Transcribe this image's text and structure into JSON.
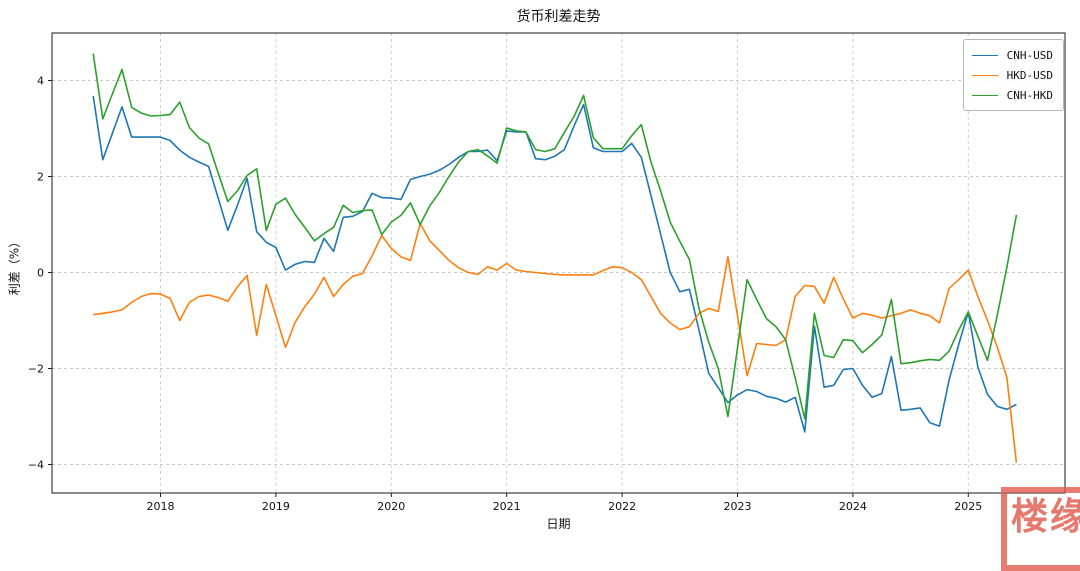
{
  "title": "货币利差走势",
  "xlabel": "日期",
  "ylabel": "利差（%）",
  "watermark_text": "楼缘",
  "colors": {
    "cnh_usd": "#1f77b4",
    "hkd_usd": "#ff7f0e",
    "cnh_hkd": "#2ca02c",
    "grid": "#c9c9c9",
    "spine": "#1a1a1a",
    "stamp": "#e0584a"
  },
  "legend": {
    "position": "upper right",
    "items": [
      {
        "label": "CNH-USD",
        "color": "#1f77b4"
      },
      {
        "label": "HKD-USD",
        "color": "#ff7f0e"
      },
      {
        "label": "CNH-HKD",
        "color": "#2ca02c"
      }
    ]
  },
  "chart_data": {
    "type": "line",
    "title": "货币利差走势",
    "xlabel": "日期",
    "ylabel": "利差（%）",
    "grid": true,
    "x_ticks": [
      2018,
      2019,
      2020,
      2021,
      2022,
      2023,
      2024,
      2025
    ],
    "y_ticks": [
      -4,
      -2,
      0,
      2,
      4
    ],
    "xlim": [
      2017.06,
      2025.84
    ],
    "ylim": [
      -4.63,
      4.99
    ],
    "x_start": "2017-06",
    "x_interval": "monthly",
    "x_start_decimal_year": 2017.4167,
    "x_step_decimal_year": 0.08333,
    "series": [
      {
        "name": "CNH-USD",
        "color": "#1f77b4",
        "values": [
          3.68,
          2.35,
          2.9,
          3.45,
          2.82,
          2.82,
          2.82,
          2.82,
          2.75,
          2.55,
          2.4,
          2.3,
          2.21,
          1.55,
          0.88,
          1.4,
          1.96,
          0.85,
          0.63,
          0.52,
          0.05,
          0.17,
          0.23,
          0.21,
          0.71,
          0.44,
          1.15,
          1.17,
          1.27,
          1.65,
          1.56,
          1.55,
          1.52,
          1.94,
          2.0,
          2.05,
          2.13,
          2.25,
          2.4,
          2.52,
          2.52,
          2.55,
          2.33,
          2.95,
          2.93,
          2.93,
          2.37,
          2.35,
          2.42,
          2.56,
          3.05,
          3.5,
          2.6,
          2.52,
          2.52,
          2.52,
          2.69,
          2.4,
          1.6,
          0.8,
          0.0,
          -0.4,
          -0.35,
          -1.2,
          -2.1,
          -2.4,
          -2.71,
          -2.55,
          -2.44,
          -2.48,
          -2.58,
          -2.62,
          -2.7,
          -2.6,
          -3.32,
          -1.12,
          -2.39,
          -2.35,
          -2.02,
          -2.0,
          -2.35,
          -2.6,
          -2.52,
          -1.75,
          -2.87,
          -2.85,
          -2.82,
          -3.13,
          -3.2,
          -2.24,
          -1.5,
          -0.82,
          -1.97,
          -2.54,
          -2.79,
          -2.85,
          -2.75
        ]
      },
      {
        "name": "HKD-USD",
        "color": "#ff7f0e",
        "values": [
          -0.88,
          -0.85,
          -0.82,
          -0.78,
          -0.62,
          -0.5,
          -0.44,
          -0.45,
          -0.54,
          -1.0,
          -0.62,
          -0.5,
          -0.47,
          -0.52,
          -0.6,
          -0.3,
          -0.06,
          -1.31,
          -0.25,
          -0.9,
          -1.56,
          -1.04,
          -0.71,
          -0.45,
          -0.1,
          -0.5,
          -0.25,
          -0.08,
          -0.02,
          0.35,
          0.77,
          0.5,
          0.33,
          0.25,
          1.02,
          0.66,
          0.46,
          0.25,
          0.1,
          0.0,
          -0.04,
          0.12,
          0.05,
          0.19,
          0.05,
          0.02,
          0.0,
          -0.02,
          -0.04,
          -0.05,
          -0.05,
          -0.05,
          -0.05,
          0.04,
          0.12,
          0.1,
          0.0,
          -0.15,
          -0.5,
          -0.85,
          -1.05,
          -1.19,
          -1.13,
          -0.85,
          -0.75,
          -0.81,
          0.33,
          -0.9,
          -2.15,
          -1.48,
          -1.5,
          -1.52,
          -1.4,
          -0.5,
          -0.27,
          -0.29,
          -0.64,
          -0.1,
          -0.55,
          -0.95,
          -0.85,
          -0.89,
          -0.95,
          -0.9,
          -0.85,
          -0.78,
          -0.85,
          -0.9,
          -1.05,
          -0.33,
          -0.15,
          0.05,
          -0.5,
          -1.0,
          -1.55,
          -2.18,
          -3.96
        ]
      },
      {
        "name": "CNH-HKD",
        "color": "#2ca02c",
        "values": [
          4.56,
          3.2,
          3.72,
          4.23,
          3.44,
          3.32,
          3.26,
          3.27,
          3.29,
          3.55,
          3.02,
          2.8,
          2.68,
          2.07,
          1.48,
          1.7,
          2.02,
          2.16,
          0.88,
          1.42,
          1.55,
          1.21,
          0.94,
          0.66,
          0.81,
          0.94,
          1.4,
          1.25,
          1.29,
          1.3,
          0.79,
          1.05,
          1.19,
          1.45,
          1.0,
          1.39,
          1.67,
          2.0,
          2.3,
          2.52,
          2.56,
          2.43,
          2.28,
          3.01,
          2.95,
          2.93,
          2.56,
          2.52,
          2.58,
          2.92,
          3.25,
          3.69,
          2.81,
          2.58,
          2.58,
          2.58,
          2.85,
          3.08,
          2.3,
          1.7,
          1.05,
          0.65,
          0.27,
          -0.75,
          -1.45,
          -2.0,
          -3.0,
          -1.57,
          -0.15,
          -0.56,
          -0.96,
          -1.13,
          -1.4,
          -2.2,
          -3.05,
          -0.85,
          -1.73,
          -1.77,
          -1.4,
          -1.42,
          -1.67,
          -1.5,
          -1.3,
          -0.56,
          -1.9,
          -1.88,
          -1.84,
          -1.81,
          -1.83,
          -1.64,
          -1.2,
          -0.82,
          -1.33,
          -1.83,
          -0.9,
          0.1,
          1.2
        ]
      }
    ]
  }
}
